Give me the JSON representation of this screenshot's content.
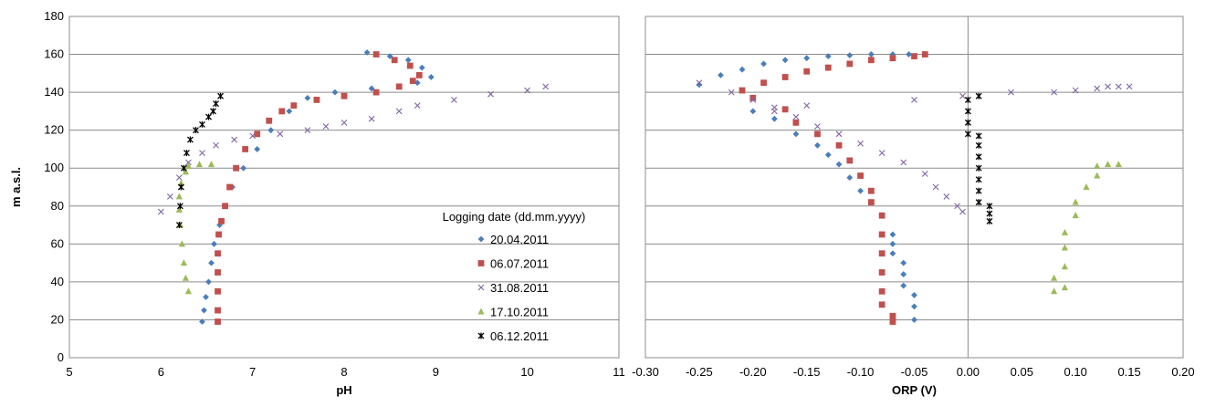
{
  "colors": {
    "s1": "#4a7ebb",
    "s2": "#c0504d",
    "s3": "#8064a2",
    "s4": "#9bbb59",
    "s5": "#000000",
    "grid": "#8c8c8c"
  },
  "legend": {
    "title": "Logging date (dd.mm.yyyy)",
    "entries": [
      "20.04.2011",
      "06.07.2011",
      "31.08.2011",
      "17.10.2011",
      "06.12.2011"
    ],
    "placement": "bottom-right of left panel"
  },
  "chart_data": [
    {
      "type": "scatter",
      "title": "",
      "xlabel": "pH",
      "ylabel": "m a.s.l.",
      "xlim": [
        5,
        11
      ],
      "ylim": [
        0,
        180
      ],
      "xticks": [
        "5",
        "6",
        "7",
        "8",
        "9",
        "10",
        "11"
      ],
      "yticks": [
        "0",
        "20",
        "40",
        "60",
        "80",
        "100",
        "120",
        "140",
        "160",
        "180"
      ],
      "grid": "horizontal",
      "series": [
        {
          "name": "20.04.2011",
          "marker": "diamond",
          "points": [
            [
              6.45,
              19
            ],
            [
              6.47,
              25
            ],
            [
              6.49,
              32
            ],
            [
              6.52,
              40
            ],
            [
              6.55,
              50
            ],
            [
              6.58,
              60
            ],
            [
              6.64,
              70
            ],
            [
              6.7,
              80
            ],
            [
              6.78,
              90
            ],
            [
              6.9,
              100
            ],
            [
              7.05,
              110
            ],
            [
              7.2,
              120
            ],
            [
              7.4,
              130
            ],
            [
              7.6,
              137
            ],
            [
              7.9,
              140
            ],
            [
              8.3,
              142
            ],
            [
              8.6,
              143
            ],
            [
              8.8,
              145
            ],
            [
              8.95,
              148
            ],
            [
              8.85,
              153
            ],
            [
              8.7,
              157
            ],
            [
              8.5,
              159
            ],
            [
              8.25,
              161
            ]
          ]
        },
        {
          "name": "06.07.2011",
          "marker": "square",
          "points": [
            [
              6.62,
              19
            ],
            [
              6.62,
              25
            ],
            [
              6.62,
              35
            ],
            [
              6.62,
              45
            ],
            [
              6.62,
              55
            ],
            [
              6.63,
              65
            ],
            [
              6.66,
              72
            ],
            [
              6.7,
              80
            ],
            [
              6.75,
              90
            ],
            [
              6.82,
              100
            ],
            [
              6.92,
              110
            ],
            [
              7.05,
              118
            ],
            [
              7.18,
              125
            ],
            [
              7.32,
              130
            ],
            [
              7.45,
              133
            ],
            [
              7.7,
              136
            ],
            [
              8.0,
              138
            ],
            [
              8.35,
              140
            ],
            [
              8.6,
              143
            ],
            [
              8.75,
              146
            ],
            [
              8.82,
              149
            ],
            [
              8.72,
              154
            ],
            [
              8.55,
              157
            ],
            [
              8.35,
              160
            ]
          ]
        },
        {
          "name": "31.08.2011",
          "marker": "x",
          "points": [
            [
              6.0,
              77
            ],
            [
              6.1,
              85
            ],
            [
              6.2,
              95
            ],
            [
              6.3,
              103
            ],
            [
              6.45,
              108
            ],
            [
              6.6,
              112
            ],
            [
              6.8,
              115
            ],
            [
              7.0,
              117
            ],
            [
              7.3,
              118
            ],
            [
              7.6,
              120
            ],
            [
              7.8,
              122
            ],
            [
              8.0,
              124
            ],
            [
              8.3,
              126
            ],
            [
              8.6,
              130
            ],
            [
              8.8,
              133
            ],
            [
              9.2,
              136
            ],
            [
              9.6,
              139
            ],
            [
              10.0,
              141
            ],
            [
              10.2,
              143
            ]
          ]
        },
        {
          "name": "17.10.2011",
          "marker": "triangle",
          "points": [
            [
              6.3,
              35
            ],
            [
              6.27,
              42
            ],
            [
              6.25,
              50
            ],
            [
              6.23,
              60
            ],
            [
              6.21,
              70
            ],
            [
              6.2,
              78
            ],
            [
              6.2,
              85
            ],
            [
              6.22,
              92
            ],
            [
              6.27,
              98
            ],
            [
              6.3,
              101
            ],
            [
              6.42,
              102
            ],
            [
              6.55,
              102
            ]
          ]
        },
        {
          "name": "06.12.2011",
          "marker": "star",
          "points": [
            [
              6.2,
              70
            ],
            [
              6.21,
              80
            ],
            [
              6.22,
              90
            ],
            [
              6.25,
              100
            ],
            [
              6.28,
              108
            ],
            [
              6.32,
              115
            ],
            [
              6.38,
              120
            ],
            [
              6.45,
              123
            ],
            [
              6.52,
              127
            ],
            [
              6.57,
              130
            ],
            [
              6.6,
              134
            ],
            [
              6.65,
              138
            ]
          ]
        }
      ]
    },
    {
      "type": "scatter",
      "title": "",
      "xlabel": "ORP (V)",
      "ylabel": "",
      "xlim": [
        -0.3,
        0.2
      ],
      "ylim": [
        0,
        180
      ],
      "xticks": [
        "-0.30",
        "-0.25",
        "-0.20",
        "-0.15",
        "-0.10",
        "-0.05",
        "0.00",
        "0.05",
        "0.10",
        "0.15",
        "0.20"
      ],
      "grid": "horizontal",
      "series": [
        {
          "name": "20.04.2011",
          "marker": "diamond",
          "points": [
            [
              -0.25,
              144
            ],
            [
              -0.23,
              149
            ],
            [
              -0.21,
              152
            ],
            [
              -0.19,
              155
            ],
            [
              -0.17,
              157
            ],
            [
              -0.15,
              158
            ],
            [
              -0.13,
              159
            ],
            [
              -0.11,
              159.5
            ],
            [
              -0.09,
              160
            ],
            [
              -0.07,
              160
            ],
            [
              -0.055,
              160
            ],
            [
              -0.2,
              130
            ],
            [
              -0.18,
              126
            ],
            [
              -0.16,
              118
            ],
            [
              -0.14,
              112
            ],
            [
              -0.13,
              107
            ],
            [
              -0.12,
              102
            ],
            [
              -0.11,
              95
            ],
            [
              -0.1,
              88
            ],
            [
              -0.07,
              65
            ],
            [
              -0.07,
              60
            ],
            [
              -0.07,
              55
            ],
            [
              -0.06,
              50
            ],
            [
              -0.06,
              44
            ],
            [
              -0.06,
              38
            ],
            [
              -0.05,
              33
            ],
            [
              -0.05,
              27
            ],
            [
              -0.05,
              20
            ]
          ]
        },
        {
          "name": "06.07.2011",
          "marker": "square",
          "points": [
            [
              -0.21,
              141
            ],
            [
              -0.19,
              145
            ],
            [
              -0.17,
              148
            ],
            [
              -0.15,
              151
            ],
            [
              -0.13,
              153
            ],
            [
              -0.11,
              155
            ],
            [
              -0.09,
              157
            ],
            [
              -0.07,
              158
            ],
            [
              -0.05,
              159
            ],
            [
              -0.04,
              160
            ],
            [
              -0.2,
              137
            ],
            [
              -0.17,
              131
            ],
            [
              -0.16,
              124
            ],
            [
              -0.14,
              118
            ],
            [
              -0.12,
              112
            ],
            [
              -0.11,
              104
            ],
            [
              -0.1,
              96
            ],
            [
              -0.09,
              88
            ],
            [
              -0.09,
              82
            ],
            [
              -0.08,
              75
            ],
            [
              -0.08,
              65
            ],
            [
              -0.08,
              55
            ],
            [
              -0.08,
              45
            ],
            [
              -0.08,
              35
            ],
            [
              -0.08,
              28
            ],
            [
              -0.07,
              22
            ],
            [
              -0.07,
              19
            ]
          ]
        },
        {
          "name": "31.08.2011",
          "marker": "x",
          "points": [
            [
              -0.25,
              145
            ],
            [
              -0.22,
              140
            ],
            [
              -0.2,
              136
            ],
            [
              -0.18,
              132
            ],
            [
              -0.16,
              127
            ],
            [
              -0.14,
              122
            ],
            [
              -0.12,
              118
            ],
            [
              -0.1,
              113
            ],
            [
              -0.08,
              108
            ],
            [
              -0.06,
              103
            ],
            [
              -0.04,
              97
            ],
            [
              -0.03,
              90
            ],
            [
              -0.02,
              85
            ],
            [
              -0.01,
              80
            ],
            [
              -0.005,
              77
            ],
            [
              0.04,
              140
            ],
            [
              0.08,
              140
            ],
            [
              0.1,
              141
            ],
            [
              0.12,
              142
            ],
            [
              0.13,
              143
            ],
            [
              0.14,
              143
            ],
            [
              0.15,
              143
            ],
            [
              -0.005,
              138
            ],
            [
              -0.05,
              136
            ],
            [
              -0.15,
              133
            ],
            [
              -0.18,
              130
            ]
          ]
        },
        {
          "name": "17.10.2011",
          "marker": "triangle",
          "points": [
            [
              0.08,
              35
            ],
            [
              0.08,
              42
            ],
            [
              0.09,
              37
            ],
            [
              0.09,
              48
            ],
            [
              0.09,
              58
            ],
            [
              0.09,
              66
            ],
            [
              0.1,
              75
            ],
            [
              0.1,
              82
            ],
            [
              0.11,
              90
            ],
            [
              0.12,
              96
            ],
            [
              0.12,
              101
            ],
            [
              0.13,
              102
            ],
            [
              0.14,
              102
            ]
          ]
        },
        {
          "name": "06.12.2011",
          "marker": "star",
          "points": [
            [
              0.0,
              118
            ],
            [
              0.0,
              124
            ],
            [
              0.0,
              130
            ],
            [
              0.0,
              136
            ],
            [
              0.01,
              138
            ],
            [
              0.01,
              117
            ],
            [
              0.01,
              112
            ],
            [
              0.01,
              106
            ],
            [
              0.01,
              100
            ],
            [
              0.01,
              94
            ],
            [
              0.01,
              88
            ],
            [
              0.01,
              82
            ],
            [
              0.02,
              80
            ],
            [
              0.02,
              76
            ],
            [
              0.02,
              72
            ]
          ]
        }
      ]
    }
  ]
}
